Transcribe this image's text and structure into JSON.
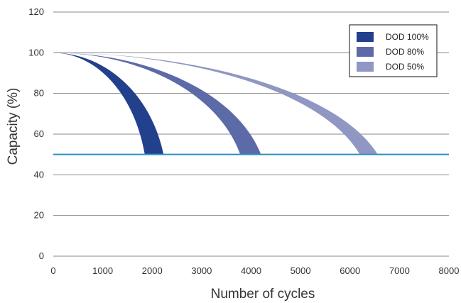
{
  "chart_data": {
    "type": "area",
    "title": "",
    "xlabel": "Number of cycles",
    "ylabel": "Capacity (%)",
    "xlim": [
      0,
      8000
    ],
    "ylim": [
      0,
      120
    ],
    "x_ticks": [
      "0",
      "1000",
      "2000",
      "3000",
      "4000",
      "5000",
      "6000",
      "7000",
      "8000"
    ],
    "y_ticks": [
      "0",
      "20",
      "40",
      "60",
      "80",
      "100",
      "120"
    ],
    "grid": "horizontal",
    "legend_position": "top-right",
    "reference_line": {
      "y": 50,
      "color": "#2a8fc4"
    },
    "series": [
      {
        "name": "DOD 100%",
        "color": "#22408c",
        "start": [
          0,
          100
        ],
        "band_end_x": [
          1850,
          2230
        ],
        "end_y": 50
      },
      {
        "name": "DOD 80%",
        "color": "#5d6aa8",
        "start": [
          0,
          100
        ],
        "band_end_x": [
          3780,
          4200
        ],
        "end_y": 50
      },
      {
        "name": "DOD 50%",
        "color": "#8f97c2",
        "start": [
          0,
          100
        ],
        "band_end_x": [
          6200,
          6560
        ],
        "end_y": 50
      }
    ]
  }
}
